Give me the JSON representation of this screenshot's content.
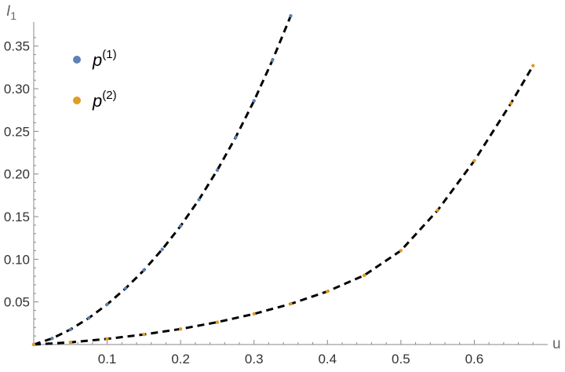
{
  "chart_data": {
    "type": "scatter",
    "title": "",
    "xlabel": "u",
    "ylabel_base": "I",
    "ylabel_sub": "1",
    "xlim": [
      0,
      0.7
    ],
    "ylim": [
      0,
      0.37
    ],
    "xticks": [
      0.1,
      0.2,
      0.3,
      0.4,
      0.5,
      0.6
    ],
    "xtick_labels": [
      "0.1",
      "0.2",
      "0.3",
      "0.4",
      "0.5",
      "0.6"
    ],
    "yticks": [
      0.05,
      0.1,
      0.15,
      0.2,
      0.25,
      0.3,
      0.35
    ],
    "ytick_labels": [
      "0.05",
      "0.10",
      "0.15",
      "0.20",
      "0.25",
      "0.30",
      "0.35"
    ],
    "grid": false,
    "legend_position": "top-left",
    "series": [
      {
        "name_base": "p",
        "name_sup": "(1)",
        "color": "#5e81b5",
        "x": [
          0.0,
          0.025,
          0.05,
          0.075,
          0.1,
          0.125,
          0.15,
          0.175,
          0.2,
          0.225,
          0.25,
          0.275,
          0.3,
          0.325,
          0.35
        ],
        "y": [
          0.0,
          0.0072,
          0.0177,
          0.0311,
          0.0471,
          0.0658,
          0.0872,
          0.1116,
          0.139,
          0.1699,
          0.2045,
          0.243,
          0.2858,
          0.3332,
          0.3855
        ]
      },
      {
        "name_base": "p",
        "name_sup": "(2)",
        "color": "#e19c24",
        "x": [
          0.0,
          0.05,
          0.1,
          0.15,
          0.2,
          0.25,
          0.3,
          0.35,
          0.4,
          0.45,
          0.5,
          0.55,
          0.6,
          0.65,
          0.68
        ],
        "y": [
          0.0,
          0.0026,
          0.0066,
          0.0118,
          0.0182,
          0.0262,
          0.0359,
          0.0477,
          0.0623,
          0.0811,
          0.1102,
          0.1573,
          0.2155,
          0.283,
          0.327
        ]
      }
    ],
    "fit_lines": {
      "color": "#000000",
      "style": "dashed"
    }
  }
}
